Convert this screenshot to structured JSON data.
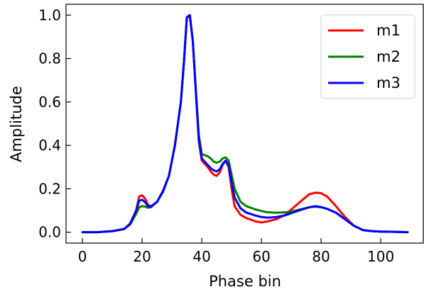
{
  "chart_data": {
    "type": "line",
    "title": "",
    "xlabel": "Phase bin",
    "ylabel": "Amplitude",
    "xlim": [
      -5.5,
      114.5
    ],
    "ylim": [
      -0.05,
      1.05
    ],
    "xticks": [
      0,
      20,
      40,
      60,
      80,
      100
    ],
    "yticks": [
      0.0,
      0.2,
      0.4,
      0.6,
      0.8,
      1.0
    ],
    "xtick_labels": [
      "0",
      "20",
      "40",
      "60",
      "80",
      "100"
    ],
    "ytick_labels": [
      "0.0",
      "0.2",
      "0.4",
      "0.6",
      "0.8",
      "1.0"
    ],
    "grid": false,
    "legend_position": "top-right",
    "series": [
      {
        "name": "m1",
        "color": "#ff0000",
        "points": [
          [
            0,
            0.0
          ],
          [
            5,
            0.0
          ],
          [
            10,
            0.005
          ],
          [
            14,
            0.015
          ],
          [
            16,
            0.04
          ],
          [
            18,
            0.1
          ],
          [
            19,
            0.165
          ],
          [
            20,
            0.17
          ],
          [
            21,
            0.155
          ],
          [
            22,
            0.125
          ],
          [
            23,
            0.12
          ],
          [
            25,
            0.14
          ],
          [
            27,
            0.19
          ],
          [
            29,
            0.26
          ],
          [
            31,
            0.4
          ],
          [
            33,
            0.6
          ],
          [
            34,
            0.78
          ],
          [
            35,
            0.99
          ],
          [
            36,
            0.995
          ],
          [
            37,
            0.88
          ],
          [
            38,
            0.65
          ],
          [
            39,
            0.42
          ],
          [
            40,
            0.33
          ],
          [
            42,
            0.3
          ],
          [
            43,
            0.28
          ],
          [
            44,
            0.265
          ],
          [
            45,
            0.26
          ],
          [
            46,
            0.275
          ],
          [
            47,
            0.31
          ],
          [
            48,
            0.33
          ],
          [
            49,
            0.3
          ],
          [
            50,
            0.2
          ],
          [
            51,
            0.12
          ],
          [
            53,
            0.08
          ],
          [
            55,
            0.065
          ],
          [
            58,
            0.05
          ],
          [
            60,
            0.045
          ],
          [
            62,
            0.05
          ],
          [
            65,
            0.06
          ],
          [
            68,
            0.08
          ],
          [
            70,
            0.105
          ],
          [
            73,
            0.14
          ],
          [
            76,
            0.175
          ],
          [
            78,
            0.182
          ],
          [
            80,
            0.18
          ],
          [
            82,
            0.165
          ],
          [
            85,
            0.12
          ],
          [
            88,
            0.07
          ],
          [
            91,
            0.03
          ],
          [
            94,
            0.01
          ],
          [
            97,
            0.005
          ],
          [
            100,
            0.003
          ],
          [
            105,
            0.002
          ],
          [
            109,
            0.0
          ]
        ]
      },
      {
        "name": "m2",
        "color": "#008000",
        "points": [
          [
            0,
            0.0
          ],
          [
            5,
            0.0
          ],
          [
            10,
            0.005
          ],
          [
            14,
            0.015
          ],
          [
            16,
            0.035
          ],
          [
            18,
            0.085
          ],
          [
            19,
            0.115
          ],
          [
            20,
            0.12
          ],
          [
            21,
            0.118
          ],
          [
            22,
            0.113
          ],
          [
            23,
            0.115
          ],
          [
            25,
            0.14
          ],
          [
            27,
            0.185
          ],
          [
            29,
            0.26
          ],
          [
            31,
            0.4
          ],
          [
            33,
            0.6
          ],
          [
            34,
            0.78
          ],
          [
            35,
            0.99
          ],
          [
            36,
            1.0
          ],
          [
            37,
            0.88
          ],
          [
            38,
            0.66
          ],
          [
            39,
            0.45
          ],
          [
            40,
            0.36
          ],
          [
            42,
            0.35
          ],
          [
            43,
            0.34
          ],
          [
            44,
            0.325
          ],
          [
            45,
            0.32
          ],
          [
            46,
            0.325
          ],
          [
            47,
            0.34
          ],
          [
            48,
            0.345
          ],
          [
            49,
            0.33
          ],
          [
            50,
            0.265
          ],
          [
            51,
            0.2
          ],
          [
            53,
            0.14
          ],
          [
            55,
            0.12
          ],
          [
            58,
            0.105
          ],
          [
            60,
            0.098
          ],
          [
            62,
            0.092
          ],
          [
            65,
            0.09
          ],
          [
            68,
            0.092
          ],
          [
            70,
            0.095
          ],
          [
            73,
            0.105
          ],
          [
            76,
            0.115
          ],
          [
            78,
            0.118
          ],
          [
            80,
            0.115
          ],
          [
            82,
            0.108
          ],
          [
            85,
            0.09
          ],
          [
            88,
            0.06
          ],
          [
            91,
            0.03
          ],
          [
            94,
            0.01
          ],
          [
            97,
            0.005
          ],
          [
            100,
            0.003
          ],
          [
            105,
            0.002
          ],
          [
            109,
            0.0
          ]
        ]
      },
      {
        "name": "m3",
        "color": "#0000ff",
        "points": [
          [
            0,
            0.0
          ],
          [
            5,
            0.0
          ],
          [
            10,
            0.005
          ],
          [
            14,
            0.015
          ],
          [
            16,
            0.04
          ],
          [
            18,
            0.1
          ],
          [
            19,
            0.145
          ],
          [
            20,
            0.15
          ],
          [
            21,
            0.138
          ],
          [
            22,
            0.12
          ],
          [
            23,
            0.118
          ],
          [
            25,
            0.14
          ],
          [
            27,
            0.19
          ],
          [
            29,
            0.26
          ],
          [
            31,
            0.4
          ],
          [
            33,
            0.6
          ],
          [
            34,
            0.78
          ],
          [
            35,
            0.99
          ],
          [
            36,
            1.0
          ],
          [
            37,
            0.88
          ],
          [
            38,
            0.65
          ],
          [
            39,
            0.43
          ],
          [
            40,
            0.34
          ],
          [
            42,
            0.31
          ],
          [
            43,
            0.295
          ],
          [
            44,
            0.285
          ],
          [
            45,
            0.28
          ],
          [
            46,
            0.29
          ],
          [
            47,
            0.315
          ],
          [
            48,
            0.33
          ],
          [
            49,
            0.31
          ],
          [
            50,
            0.23
          ],
          [
            51,
            0.16
          ],
          [
            53,
            0.11
          ],
          [
            55,
            0.09
          ],
          [
            58,
            0.077
          ],
          [
            60,
            0.07
          ],
          [
            62,
            0.067
          ],
          [
            65,
            0.07
          ],
          [
            68,
            0.078
          ],
          [
            70,
            0.088
          ],
          [
            73,
            0.102
          ],
          [
            76,
            0.115
          ],
          [
            78,
            0.12
          ],
          [
            80,
            0.116
          ],
          [
            82,
            0.108
          ],
          [
            85,
            0.09
          ],
          [
            88,
            0.06
          ],
          [
            91,
            0.03
          ],
          [
            94,
            0.01
          ],
          [
            97,
            0.005
          ],
          [
            100,
            0.003
          ],
          [
            105,
            0.002
          ],
          [
            109,
            0.0
          ]
        ]
      }
    ]
  }
}
